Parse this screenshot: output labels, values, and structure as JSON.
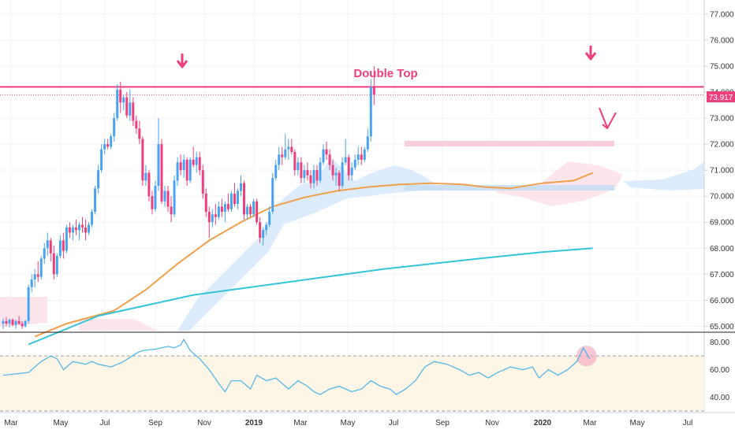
{
  "chart_data": {
    "type": "candlestick",
    "annotations": {
      "pattern_label": "Double Top",
      "last_price_label": "73.917"
    },
    "colors": {
      "up": "#4aa3f0",
      "down": "#ec3f7d",
      "resistance": "#ec3f7d",
      "sma_fast": "#f0a04b",
      "sma_slow": "#33c4d8",
      "rsi": "#55b7e6",
      "cloud_bull": "#d7e9fb",
      "cloud_bear": "#fbe1e8",
      "rsi_band": "#fdf5e6"
    },
    "price_axis": {
      "ticks": [
        "65.000",
        "66.000",
        "67.000",
        "68.000",
        "69.000",
        "70.000",
        "71.000",
        "72.000",
        "73.000",
        "74.000",
        "75.000",
        "76.000",
        "77.000"
      ],
      "range": [
        64.8,
        77.3
      ]
    },
    "rsi_axis": {
      "ticks": [
        "40.00",
        "60.00",
        "80.00"
      ],
      "range": [
        30,
        85
      ],
      "overbought": 70,
      "oversold": 30
    },
    "time_axis": {
      "labels": [
        "Mar",
        "May",
        "Jul",
        "Sep",
        "Nov",
        "2019",
        "Mar",
        "May",
        "Jul",
        "Sep",
        "Nov",
        "2020",
        "Mar",
        "May",
        "Jul"
      ]
    },
    "resistance_level": 74.2,
    "candles": [
      [
        65.1,
        65.3,
        64.9,
        65.2
      ],
      [
        65.2,
        65.35,
        65.0,
        65.1
      ],
      [
        65.1,
        65.3,
        64.95,
        65.25
      ],
      [
        65.25,
        65.3,
        65.0,
        65.05
      ],
      [
        65.05,
        65.25,
        64.9,
        65.2
      ],
      [
        65.2,
        65.4,
        65.05,
        65.1
      ],
      [
        65.1,
        65.2,
        64.9,
        65.0
      ],
      [
        65.0,
        65.25,
        64.95,
        65.2
      ],
      [
        65.2,
        66.6,
        65.1,
        66.5
      ],
      [
        66.5,
        67.0,
        66.3,
        66.8
      ],
      [
        66.8,
        67.2,
        66.5,
        67.0
      ],
      [
        67.0,
        67.5,
        66.7,
        66.9
      ],
      [
        66.9,
        67.7,
        66.8,
        67.6
      ],
      [
        67.6,
        68.2,
        67.4,
        68.0
      ],
      [
        68.0,
        68.6,
        67.7,
        68.3
      ],
      [
        68.3,
        68.4,
        67.5,
        67.8
      ],
      [
        67.8,
        68.1,
        66.8,
        67.0
      ],
      [
        67.0,
        67.8,
        66.9,
        67.7
      ],
      [
        67.7,
        68.5,
        67.6,
        68.3
      ],
      [
        68.3,
        68.6,
        67.6,
        67.9
      ],
      [
        67.9,
        68.9,
        67.8,
        68.8
      ],
      [
        68.8,
        69.0,
        68.4,
        68.6
      ],
      [
        68.6,
        68.9,
        68.3,
        68.8
      ],
      [
        68.8,
        69.1,
        68.5,
        68.7
      ],
      [
        68.7,
        69.0,
        68.3,
        68.9
      ],
      [
        68.9,
        69.2,
        68.6,
        68.8
      ],
      [
        68.8,
        69.1,
        68.3,
        68.6
      ],
      [
        68.6,
        69.0,
        68.5,
        68.9
      ],
      [
        68.9,
        69.5,
        68.8,
        69.4
      ],
      [
        69.4,
        70.4,
        69.3,
        70.3
      ],
      [
        70.3,
        71.2,
        70.1,
        71.0
      ],
      [
        71.0,
        72.0,
        70.9,
        71.8
      ],
      [
        71.8,
        72.2,
        71.6,
        72.0
      ],
      [
        72.0,
        72.2,
        71.8,
        71.9
      ],
      [
        71.9,
        72.4,
        71.8,
        72.3
      ],
      [
        72.3,
        73.2,
        72.1,
        73.0
      ],
      [
        73.0,
        74.3,
        72.9,
        74.1
      ],
      [
        74.1,
        74.4,
        73.2,
        73.6
      ],
      [
        73.6,
        73.9,
        73.3,
        73.8
      ],
      [
        73.8,
        74.0,
        73.0,
        73.1
      ],
      [
        73.1,
        74.1,
        72.9,
        73.6
      ],
      [
        73.6,
        73.8,
        72.7,
        72.9
      ],
      [
        72.9,
        73.1,
        72.4,
        72.6
      ],
      [
        72.6,
        72.9,
        72.0,
        72.2
      ],
      [
        72.2,
        72.3,
        70.4,
        70.6
      ],
      [
        70.6,
        71.2,
        70.4,
        70.9
      ],
      [
        70.9,
        71.0,
        69.8,
        70.0
      ],
      [
        70.0,
        70.2,
        69.3,
        69.5
      ],
      [
        69.5,
        70.6,
        69.4,
        70.4
      ],
      [
        70.4,
        73.0,
        70.2,
        72.0
      ],
      [
        72.0,
        72.2,
        69.7,
        69.8
      ],
      [
        69.8,
        70.4,
        69.6,
        70.2
      ],
      [
        70.2,
        70.4,
        69.4,
        69.6
      ],
      [
        69.6,
        70.0,
        69.0,
        69.3
      ],
      [
        69.3,
        70.8,
        69.2,
        70.6
      ],
      [
        70.6,
        71.5,
        70.4,
        71.3
      ],
      [
        71.3,
        71.6,
        70.8,
        71.0
      ],
      [
        71.0,
        71.6,
        70.7,
        71.4
      ],
      [
        71.4,
        71.5,
        70.4,
        70.6
      ],
      [
        70.6,
        71.5,
        70.5,
        71.4
      ],
      [
        71.4,
        71.9,
        71.1,
        71.2
      ],
      [
        71.2,
        71.7,
        70.9,
        71.5
      ],
      [
        71.5,
        71.7,
        70.8,
        71.0
      ],
      [
        71.0,
        71.2,
        69.9,
        70.1
      ],
      [
        70.1,
        70.3,
        69.2,
        69.4
      ],
      [
        69.4,
        69.6,
        68.4,
        69.0
      ],
      [
        69.0,
        69.5,
        68.8,
        69.3
      ],
      [
        69.3,
        69.7,
        68.9,
        69.2
      ],
      [
        69.2,
        69.8,
        69.1,
        69.6
      ],
      [
        69.6,
        69.9,
        69.2,
        69.4
      ],
      [
        69.4,
        69.8,
        69.0,
        69.7
      ],
      [
        69.7,
        70.1,
        69.4,
        69.5
      ],
      [
        69.5,
        70.2,
        69.4,
        70.1
      ],
      [
        70.1,
        70.5,
        69.6,
        69.7
      ],
      [
        69.7,
        70.3,
        69.5,
        70.2
      ],
      [
        70.2,
        70.8,
        70.0,
        70.5
      ],
      [
        70.5,
        70.6,
        69.1,
        69.3
      ],
      [
        69.3,
        69.7,
        69.1,
        69.6
      ],
      [
        69.6,
        69.7,
        69.2,
        69.3
      ],
      [
        69.3,
        69.9,
        69.2,
        69.8
      ],
      [
        69.8,
        69.9,
        68.9,
        69.0
      ],
      [
        69.0,
        69.2,
        68.2,
        68.4
      ],
      [
        68.4,
        68.8,
        68.1,
        68.7
      ],
      [
        68.7,
        69.0,
        68.5,
        68.9
      ],
      [
        68.9,
        69.6,
        68.8,
        69.4
      ],
      [
        69.4,
        70.9,
        69.3,
        70.7
      ],
      [
        70.7,
        71.4,
        70.6,
        71.2
      ],
      [
        71.2,
        71.9,
        71.0,
        71.6
      ],
      [
        71.6,
        71.9,
        71.2,
        71.5
      ],
      [
        71.5,
        72.4,
        71.4,
        71.8
      ],
      [
        71.8,
        72.2,
        71.4,
        71.9
      ],
      [
        71.9,
        72.2,
        71.6,
        71.7
      ],
      [
        71.7,
        71.8,
        70.8,
        71.0
      ],
      [
        71.0,
        71.5,
        70.8,
        71.3
      ],
      [
        71.3,
        71.5,
        70.5,
        70.7
      ],
      [
        70.7,
        71.2,
        70.5,
        71.0
      ],
      [
        71.0,
        71.3,
        70.6,
        70.8
      ],
      [
        70.8,
        71.0,
        70.3,
        70.5
      ],
      [
        70.5,
        71.2,
        70.3,
        71.0
      ],
      [
        71.0,
        71.2,
        70.4,
        70.6
      ],
      [
        70.6,
        71.5,
        70.5,
        71.3
      ],
      [
        71.3,
        72.0,
        71.2,
        71.8
      ],
      [
        71.8,
        72.1,
        71.4,
        71.6
      ],
      [
        71.6,
        71.8,
        71.0,
        71.2
      ],
      [
        71.2,
        71.4,
        70.6,
        70.8
      ],
      [
        70.8,
        71.1,
        70.4,
        70.9
      ],
      [
        70.9,
        71.0,
        70.2,
        70.4
      ],
      [
        70.4,
        71.5,
        70.3,
        71.3
      ],
      [
        71.3,
        72.2,
        71.2,
        71.5
      ],
      [
        71.5,
        71.6,
        70.6,
        70.8
      ],
      [
        70.8,
        71.3,
        70.6,
        71.1
      ],
      [
        71.1,
        71.6,
        71.0,
        71.4
      ],
      [
        71.4,
        71.9,
        71.2,
        71.6
      ],
      [
        71.6,
        71.9,
        71.2,
        71.4
      ],
      [
        71.4,
        71.9,
        71.3,
        71.8
      ],
      [
        71.8,
        72.6,
        71.7,
        72.3
      ],
      [
        72.3,
        74.5,
        72.1,
        74.2
      ],
      [
        74.2,
        75.0,
        73.5,
        73.9
      ]
    ],
    "sma_fast": [
      [
        10,
        64.6
      ],
      [
        20,
        65.1
      ],
      [
        35,
        65.6
      ],
      [
        45,
        66.4
      ],
      [
        55,
        67.4
      ],
      [
        65,
        68.3
      ],
      [
        75,
        69.0
      ],
      [
        85,
        69.6
      ],
      [
        95,
        69.95
      ],
      [
        105,
        70.2
      ],
      [
        115,
        70.35
      ],
      [
        125,
        70.45
      ],
      [
        135,
        70.5
      ],
      [
        145,
        70.45
      ],
      [
        152,
        70.35
      ],
      [
        160,
        70.3
      ],
      [
        170,
        70.5
      ],
      [
        180,
        70.6
      ],
      [
        186,
        70.9
      ]
    ],
    "sma_slow": [
      [
        8,
        64.3
      ],
      [
        30,
        65.4
      ],
      [
        60,
        66.2
      ],
      [
        90,
        66.7
      ],
      [
        120,
        67.2
      ],
      [
        150,
        67.6
      ],
      [
        170,
        67.85
      ],
      [
        186,
        68.0
      ]
    ],
    "rsi": [
      [
        0,
        56
      ],
      [
        8,
        58
      ],
      [
        12,
        66
      ],
      [
        15,
        70
      ],
      [
        17,
        68
      ],
      [
        19,
        60
      ],
      [
        22,
        66
      ],
      [
        26,
        64
      ],
      [
        28,
        66
      ],
      [
        30,
        64
      ],
      [
        34,
        62
      ],
      [
        38,
        66
      ],
      [
        42,
        72
      ],
      [
        44,
        74
      ],
      [
        48,
        75
      ],
      [
        52,
        77
      ],
      [
        54,
        76
      ],
      [
        56,
        78
      ],
      [
        57,
        82
      ],
      [
        59,
        74
      ],
      [
        62,
        68
      ],
      [
        65,
        60
      ],
      [
        68,
        50
      ],
      [
        70,
        44
      ],
      [
        72,
        52
      ],
      [
        75,
        52
      ],
      [
        78,
        46
      ],
      [
        80,
        56
      ],
      [
        83,
        52
      ],
      [
        86,
        54
      ],
      [
        88,
        50
      ],
      [
        90,
        46
      ],
      [
        93,
        52
      ],
      [
        96,
        48
      ],
      [
        98,
        44
      ],
      [
        100,
        42
      ],
      [
        103,
        46
      ],
      [
        106,
        48
      ],
      [
        110,
        44
      ],
      [
        113,
        46
      ],
      [
        116,
        52
      ],
      [
        119,
        48
      ],
      [
        122,
        46
      ],
      [
        124,
        42
      ],
      [
        127,
        46
      ],
      [
        130,
        52
      ],
      [
        133,
        62
      ],
      [
        136,
        66
      ],
      [
        140,
        64
      ],
      [
        144,
        60
      ],
      [
        147,
        56
      ],
      [
        150,
        58
      ],
      [
        153,
        54
      ],
      [
        156,
        58
      ],
      [
        160,
        62
      ],
      [
        164,
        60
      ],
      [
        167,
        62
      ],
      [
        169,
        54
      ],
      [
        172,
        60
      ],
      [
        175,
        56
      ],
      [
        178,
        60
      ],
      [
        181,
        66
      ],
      [
        183,
        76
      ],
      [
        185,
        68
      ]
    ]
  }
}
